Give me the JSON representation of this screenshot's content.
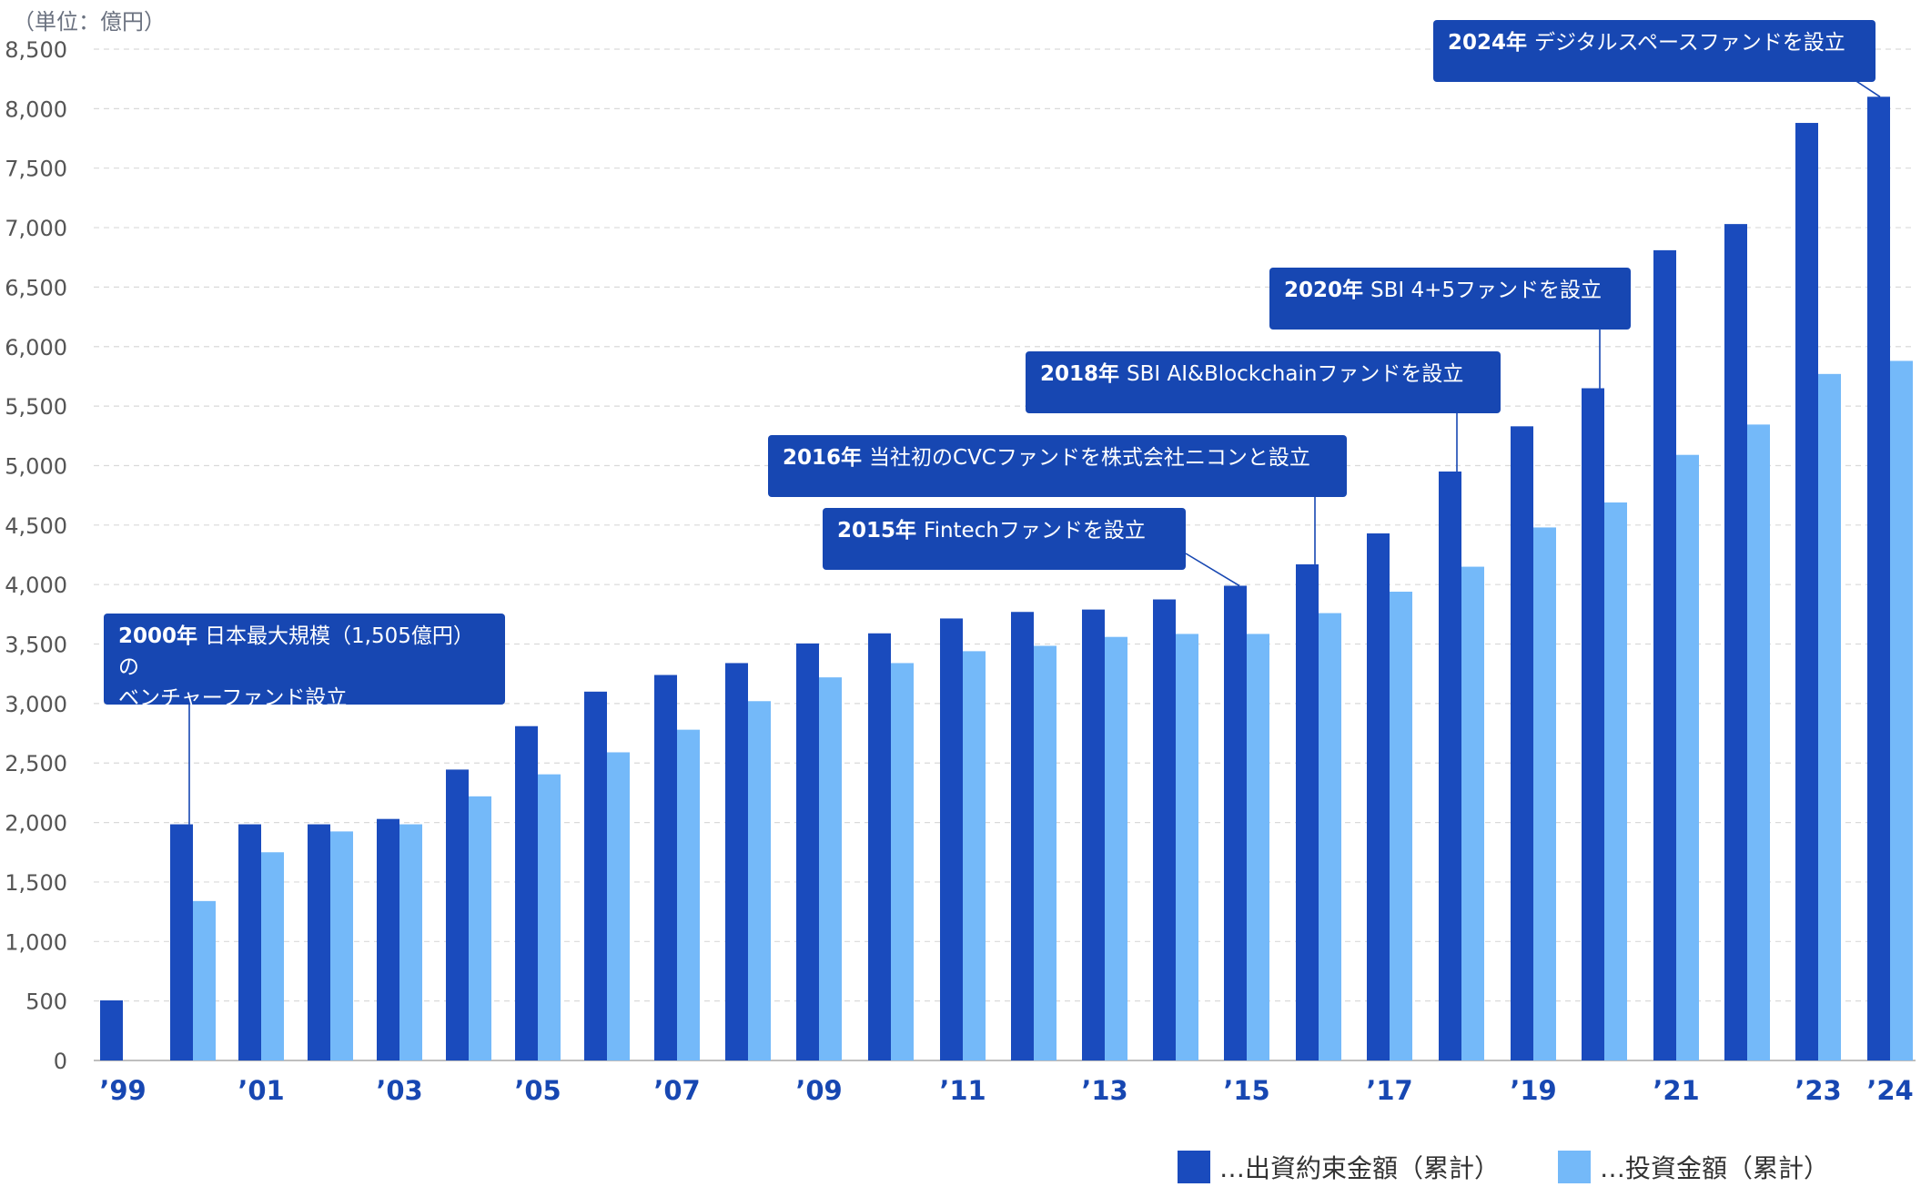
{
  "colors": {
    "commitment": "#1a4bbd",
    "investment": "#74b9f9",
    "callout_bg": "#1747b2",
    "axis_text": "#555555",
    "tick_x": "#1747b2",
    "grid": "#d9d9d9"
  },
  "unit_label": "（単位：億円）",
  "chart_data": {
    "type": "bar",
    "categories": [
      "'99",
      "'00",
      "'01",
      "'02",
      "'03",
      "'04",
      "'05",
      "'06",
      "'07",
      "'08",
      "'09",
      "'10",
      "'11",
      "'12",
      "'13",
      "'14",
      "'15",
      "'16",
      "'17",
      "'18",
      "'19",
      "'20",
      "'21",
      "'22",
      "'23",
      "'24"
    ],
    "x_tick_labels": [
      "’99",
      "",
      "’01",
      "",
      "’03",
      "",
      "’05",
      "",
      "’07",
      "",
      "’09",
      "",
      "’11",
      "",
      "’13",
      "",
      "’15",
      "",
      "’17",
      "",
      "’19",
      "",
      "’21",
      "",
      "’23",
      "’24"
    ],
    "y_ticks": [
      0,
      500,
      1000,
      1500,
      2000,
      2500,
      3000,
      3500,
      4000,
      4500,
      5000,
      5500,
      6000,
      6500,
      7000,
      7500,
      8000,
      8500
    ],
    "y_tick_labels": [
      "0",
      "500",
      "1,000",
      "1,500",
      "2,000",
      "2,500",
      "3,000",
      "3,500",
      "4,000",
      "4,500",
      "5,000",
      "5,500",
      "6,000",
      "6,500",
      "7,000",
      "7,500",
      "8,000",
      "8,500"
    ],
    "ylim": [
      0,
      8500
    ],
    "grid": true,
    "legend_position": "bottom-right",
    "series": [
      {
        "name": "…出資約束金額（累計）",
        "values": [
          505,
          1985,
          1985,
          1985,
          2030,
          2445,
          2810,
          3100,
          3240,
          3340,
          3505,
          3590,
          3715,
          3770,
          3790,
          3875,
          3990,
          4170,
          4430,
          4950,
          5330,
          5650,
          6810,
          7030,
          7880,
          8100
        ]
      },
      {
        "name": "…投資金額（累計）",
        "values": [
          null,
          1340,
          1750,
          1925,
          1985,
          2220,
          2405,
          2590,
          2780,
          3020,
          3220,
          3340,
          3440,
          3485,
          3560,
          3585,
          3585,
          3760,
          3940,
          4150,
          4480,
          4690,
          5090,
          5345,
          5770,
          5880
        ]
      }
    ],
    "annotations": [
      {
        "year": "2000年",
        "text": "日本最大規模（1,505億円）の\nベンチャーファンド設立",
        "index": 1
      },
      {
        "year": "2015年",
        "text": "Fintechファンドを設立",
        "index": 16
      },
      {
        "year": "2016年",
        "text": "当社初のCVCファンドを株式会社ニコンと設立",
        "index": 17
      },
      {
        "year": "2018年",
        "text": "SBI AI&Blockchainファンドを設立",
        "index": 19
      },
      {
        "year": "2020年",
        "text": "SBI 4+5ファンドを設立",
        "index": 21
      },
      {
        "year": "2024年",
        "text": "デジタルスペースファンドを設立",
        "index": 25
      }
    ]
  }
}
